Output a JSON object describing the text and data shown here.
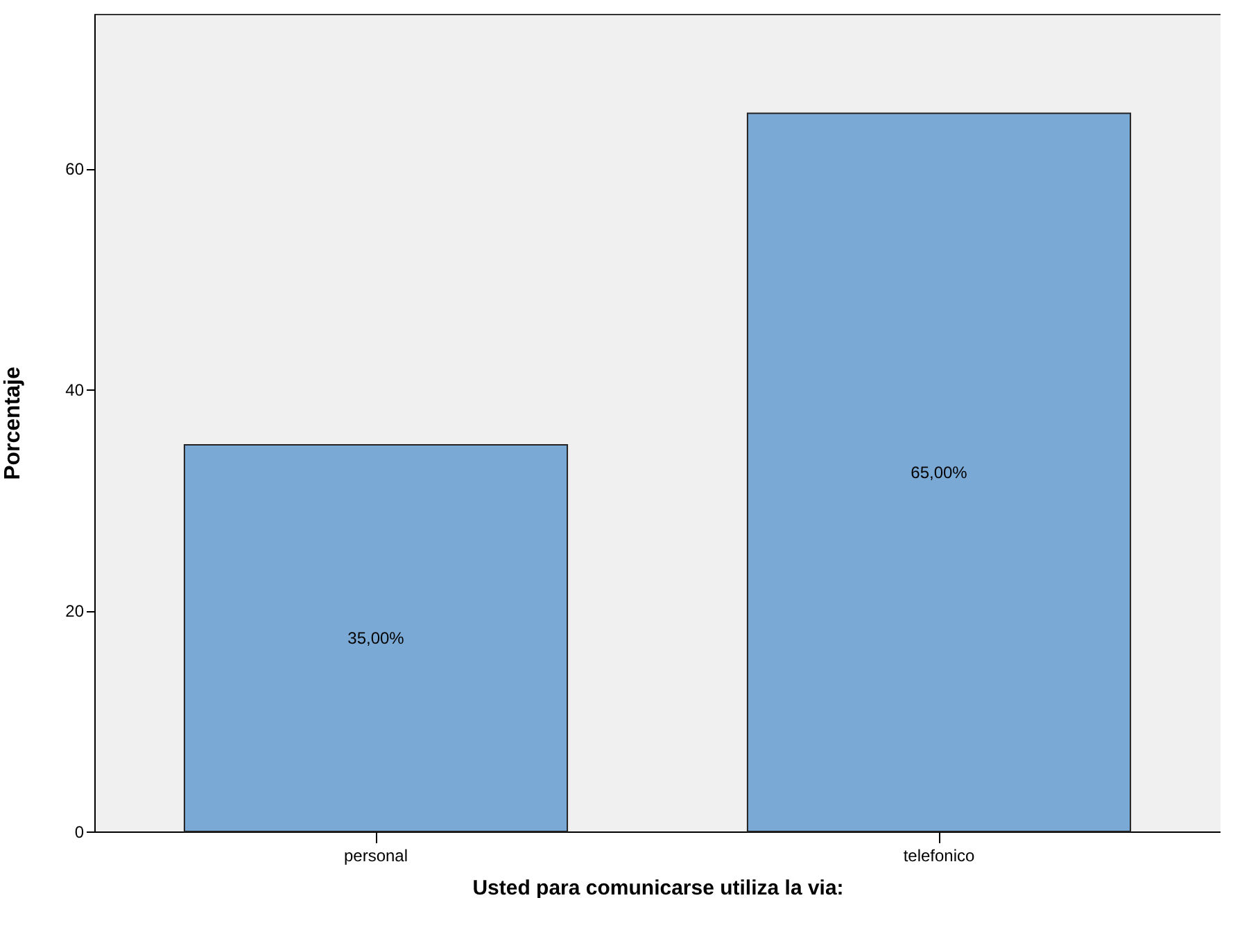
{
  "chart_data": {
    "type": "bar",
    "xlabel": "Usted para comunicarse utiliza la via:",
    "ylabel": "Porcentaje",
    "categories": [
      "personal",
      "telefonico"
    ],
    "values": [
      35,
      65
    ],
    "value_labels": [
      "35,00%",
      "65,00%"
    ],
    "color": "#7ba9d6",
    "ylim": [
      0,
      74
    ],
    "yticks": [
      0,
      20,
      40,
      60
    ],
    "grid": false
  }
}
